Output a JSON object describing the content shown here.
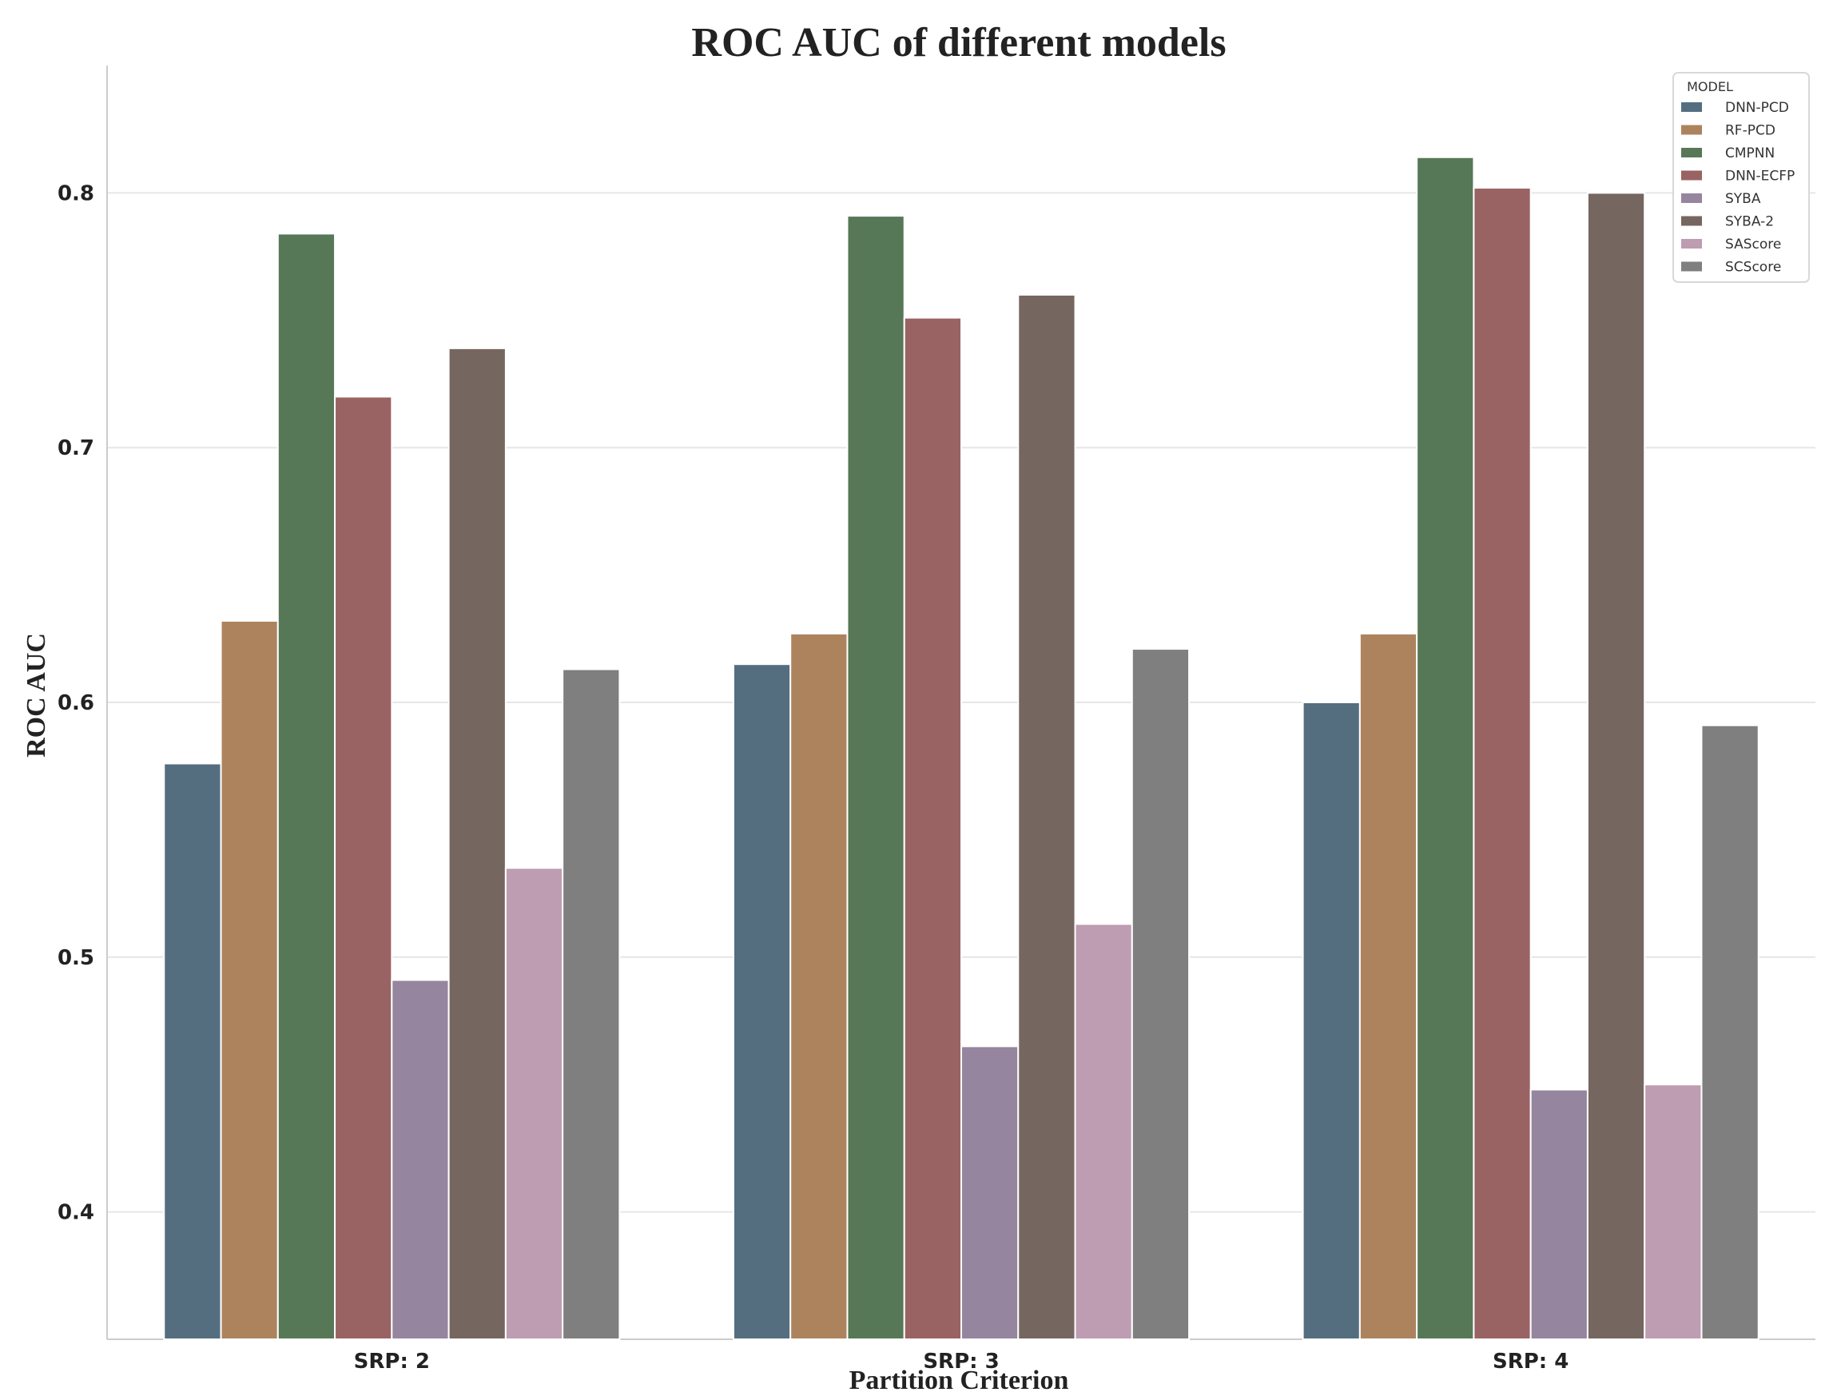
{
  "chart_data": {
    "type": "bar",
    "title": "ROC AUC of different models",
    "xlabel": "Partition Criterion",
    "ylabel": "ROC AUC",
    "categories": [
      "SRP: 2",
      "SRP: 3",
      "SRP: 4"
    ],
    "ylim": [
      0.35,
      0.85
    ],
    "yticks": [
      0.4,
      0.5,
      0.6,
      0.7,
      0.8
    ],
    "ytick_labels": [
      "0.4",
      "0.5",
      "0.6",
      "0.7",
      "0.8"
    ],
    "grid": true,
    "legend_title": "MODEL",
    "legend_position": "top-right",
    "series": [
      {
        "name": "DNN-PCD",
        "color": "#546e80",
        "values": [
          0.576,
          0.615,
          0.6
        ]
      },
      {
        "name": "RF-PCD",
        "color": "#ad835e",
        "values": [
          0.632,
          0.627,
          0.627
        ]
      },
      {
        "name": "CMPNN",
        "color": "#577857",
        "values": [
          0.784,
          0.791,
          0.814
        ]
      },
      {
        "name": "DNN-ECFP",
        "color": "#9a6363",
        "values": [
          0.72,
          0.751,
          0.802
        ]
      },
      {
        "name": "SYBA",
        "color": "#96859f",
        "values": [
          0.491,
          0.465,
          0.448
        ]
      },
      {
        "name": "SYBA-2",
        "color": "#766660",
        "values": [
          0.739,
          0.76,
          0.8
        ]
      },
      {
        "name": "SAScore",
        "color": "#be9cb2",
        "values": [
          0.535,
          0.513,
          0.45
        ]
      },
      {
        "name": "SCScore",
        "color": "#7f7f7f",
        "values": [
          0.613,
          0.621,
          0.591
        ]
      }
    ]
  }
}
